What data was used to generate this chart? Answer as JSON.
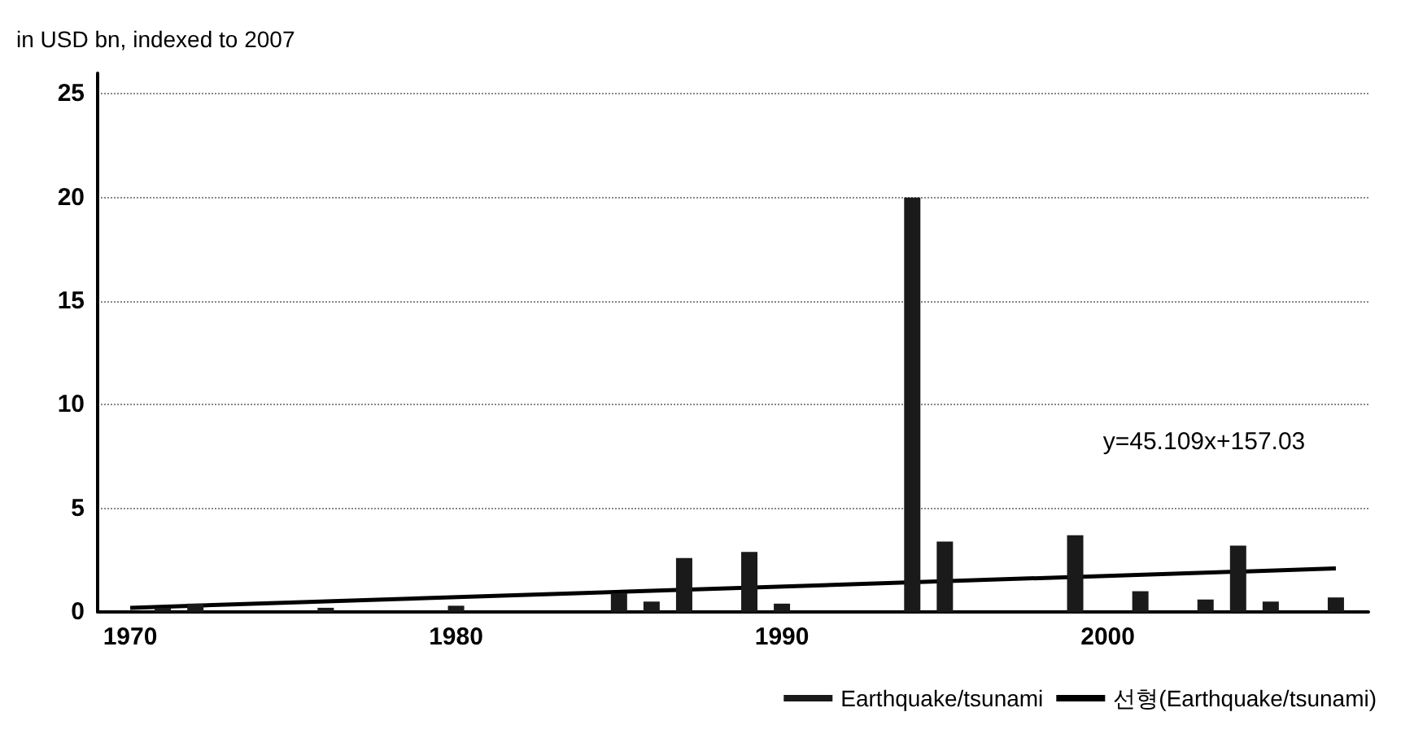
{
  "chart_data": {
    "type": "bar",
    "ylabel": "in USD bn, indexed to 2007",
    "x": [
      1971,
      1972,
      1976,
      1980,
      1985,
      1986,
      1987,
      1989,
      1990,
      1994,
      1995,
      1999,
      2001,
      2003,
      2004,
      2005,
      2007
    ],
    "series": [
      {
        "name": "Earthquake/tsunami",
        "color": "#1a1a1a",
        "values": [
          0.2,
          0.4,
          0.2,
          0.3,
          0.9,
          0.5,
          2.6,
          2.9,
          0.4,
          20,
          3.4,
          3.7,
          1,
          0.6,
          3.2,
          0.5,
          0.7
        ]
      },
      {
        "name": "선형(Earthquake/tsunami)",
        "type": "line",
        "color": "#000000",
        "x": [
          1970,
          2007
        ],
        "values": [
          0.2,
          2.1
        ]
      }
    ],
    "annotations": [
      "y=45.109x+157.03"
    ],
    "xlim": [
      1969,
      2008
    ],
    "xticks": [
      1970,
      1980,
      1990,
      2000
    ],
    "ylim": [
      0,
      26
    ],
    "yticks": [
      0,
      5,
      10,
      15,
      20,
      25
    ],
    "grid": "y",
    "legend": "bottom right",
    "marker": "none"
  }
}
